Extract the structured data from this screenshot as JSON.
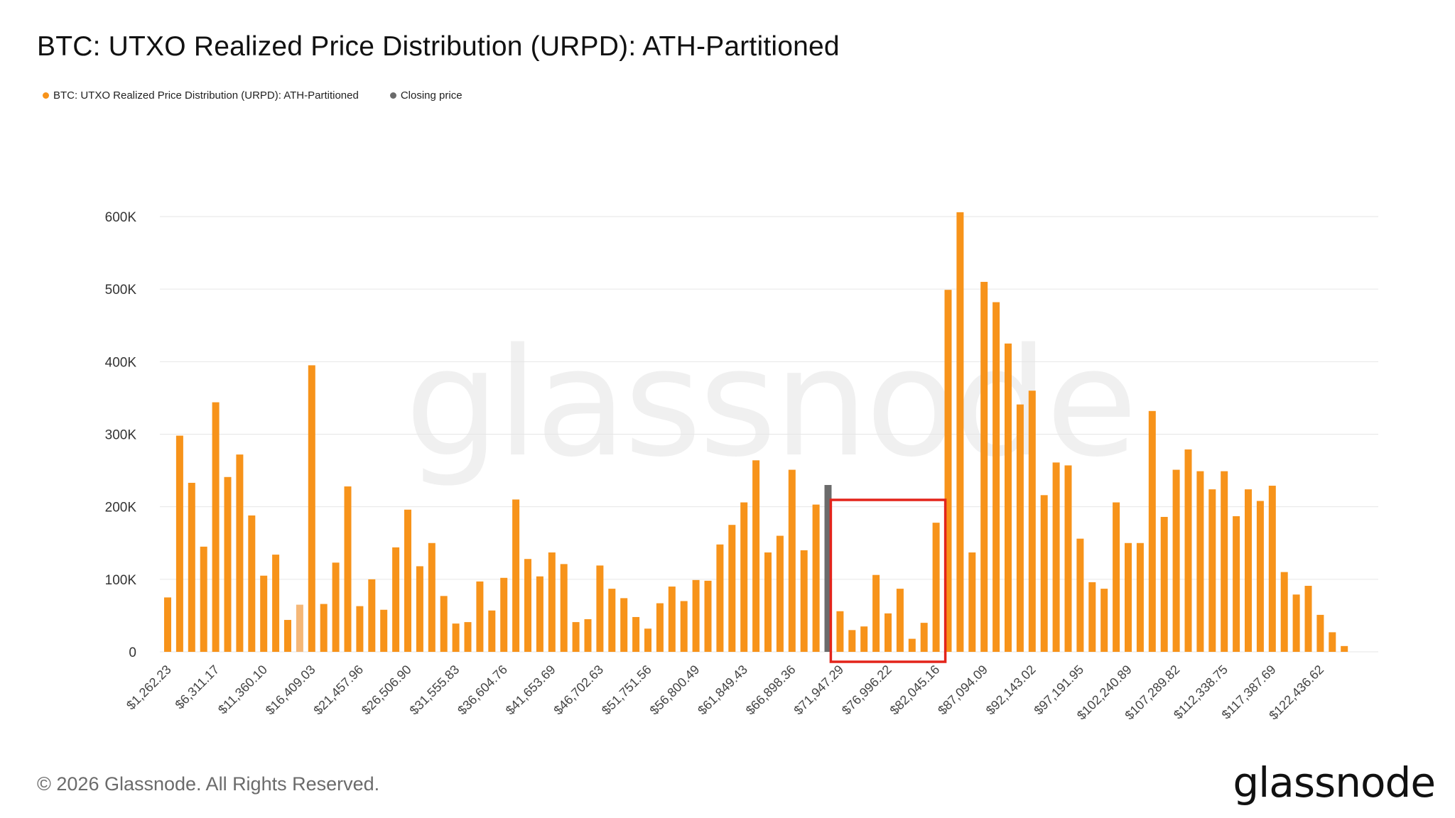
{
  "title": "BTC: UTXO Realized Price Distribution (URPD): ATH-Partitioned",
  "legend": [
    {
      "label": "BTC: UTXO Realized Price Distribution (URPD): ATH-Partitioned",
      "color": "#f7931a"
    },
    {
      "label": "Closing price",
      "color": "#6b6b6b"
    }
  ],
  "watermark": "glassnode",
  "footer": {
    "copyright": "© 2026 Glassnode. All Rights Reserved.",
    "logo": "glassnode"
  },
  "chart_data": {
    "type": "bar",
    "title": "BTC: UTXO Realized Price Distribution (URPD): ATH-Partitioned",
    "xlabel": "",
    "ylabel": "",
    "ylim": [
      0,
      620000
    ],
    "yticks": [
      0,
      100000,
      200000,
      300000,
      400000,
      500000,
      600000
    ],
    "ytick_labels": [
      "0",
      "100K",
      "200K",
      "300K",
      "400K",
      "500K",
      "600K"
    ],
    "grid": true,
    "x_tick_labels": [
      "$1,262.23",
      "$6,311.17",
      "$11,360.10",
      "$16,409.03",
      "$21,457.96",
      "$26,506.90",
      "$31,555.83",
      "$36,604.76",
      "$41,653.69",
      "$46,702.63",
      "$51,751.56",
      "$56,800.49",
      "$61,849.43",
      "$66,898.36",
      "$71,947.29",
      "$76,996.22",
      "$82,045.16",
      "$87,094.09",
      "$92,143.02",
      "$97,191.95",
      "$102,240.89",
      "$107,289.82",
      "$112,338.75",
      "$117,387.69",
      "$122,436.62"
    ],
    "bars_per_tick": 4,
    "series": [
      {
        "name": "BTC: UTXO Realized Price Distribution (URPD): ATH-Partitioned",
        "color": "#f7931a",
        "values": [
          75000,
          298000,
          233000,
          145000,
          344000,
          241000,
          272000,
          188000,
          105000,
          134000,
          44000,
          65000,
          395000,
          66000,
          123000,
          228000,
          63000,
          100000,
          58000,
          144000,
          196000,
          118000,
          150000,
          77000,
          39000,
          41000,
          97000,
          57000,
          102000,
          210000,
          128000,
          104000,
          137000,
          121000,
          41000,
          45000,
          119000,
          87000,
          74000,
          48000,
          32000,
          67000,
          90000,
          70000,
          99000,
          98000,
          148000,
          175000,
          206000,
          264000,
          137000,
          160000,
          251000,
          140000,
          203000,
          230000,
          56000,
          30000,
          35000,
          106000,
          53000,
          87000,
          18000,
          40000,
          178000,
          499000,
          606000,
          137000,
          510000,
          482000,
          425000,
          341000,
          360000,
          216000,
          261000,
          257000,
          156000,
          96000,
          87000,
          206000,
          150000,
          150000,
          332000,
          186000,
          251000,
          279000,
          249000,
          224000,
          249000,
          187000,
          224000,
          208000,
          229000,
          110000,
          79000,
          91000,
          51000,
          27000,
          8000
        ]
      }
    ],
    "closing_price_bar_index": 55,
    "light_bar_index": 11,
    "annotations": [
      {
        "type": "rectangle",
        "color": "#e3241b",
        "from_bar": 56,
        "to_bar": 64
      }
    ]
  }
}
